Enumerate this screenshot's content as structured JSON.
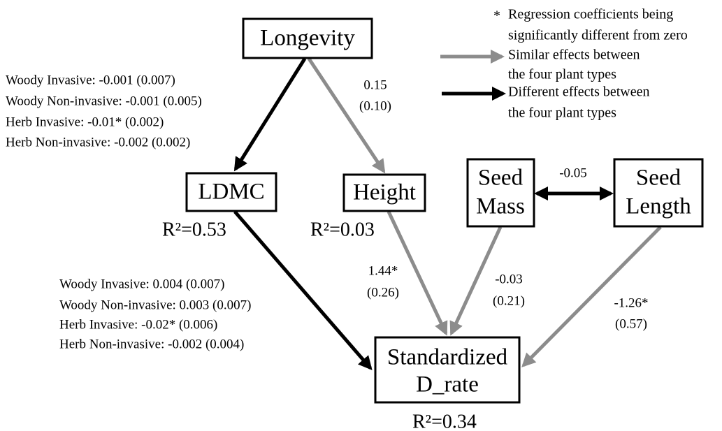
{
  "nodes": [
    {
      "lines": [
        "Longevity"
      ]
    },
    {
      "lines": [
        "LDMC"
      ],
      "r2": "R²=0.53"
    },
    {
      "lines": [
        "Height"
      ],
      "r2": "R²=0.03"
    },
    {
      "lines": [
        "Seed",
        "Mass"
      ]
    },
    {
      "lines": [
        "Seed",
        "Length"
      ]
    },
    {
      "lines": [
        "Standardized",
        "D_rate"
      ],
      "r2": "R²=0.34"
    }
  ],
  "edges": [
    {
      "from": "Longevity",
      "to": "LDMC",
      "labels": [
        "Woody Invasive: -0.001 (0.007)",
        "Woody Non-invasive: -0.001 (0.005)",
        "Herb Invasive: -0.01* (0.002)",
        "Herb Non-invasive: -0.002 (0.002)"
      ]
    },
    {
      "from": "Longevity",
      "to": "Height",
      "labels": [
        "0.15",
        "(0.10)"
      ]
    },
    {
      "from": "LDMC",
      "to": "Standardized D_rate",
      "labels": [
        "Woody Invasive: 0.004 (0.007)",
        "Woody Non-invasive: 0.003 (0.007)",
        "Herb Invasive: -0.02* (0.006)",
        "Herb Non-invasive: -0.002 (0.004)"
      ]
    },
    {
      "from": "Height",
      "to": "Standardized D_rate",
      "labels": [
        "1.44*",
        "(0.26)"
      ]
    },
    {
      "from": "Seed Mass",
      "to": "Standardized D_rate",
      "labels": [
        "-0.03",
        "(0.21)"
      ]
    },
    {
      "from": "Seed Length",
      "to": "Standardized D_rate",
      "labels": [
        "-1.26*",
        "(0.57)"
      ]
    },
    {
      "from": "Seed Mass",
      "to": "Seed Length",
      "labels": [
        "-0.05"
      ]
    }
  ],
  "legend": {
    "star": "*",
    "items": [
      {
        "lines": [
          "Regression coefficients being",
          "significantly different from zero"
        ]
      },
      {
        "lines": [
          "Similar effects between",
          "the four plant types"
        ]
      },
      {
        "lines": [
          "Different effects between",
          "the four plant types"
        ]
      }
    ]
  }
}
